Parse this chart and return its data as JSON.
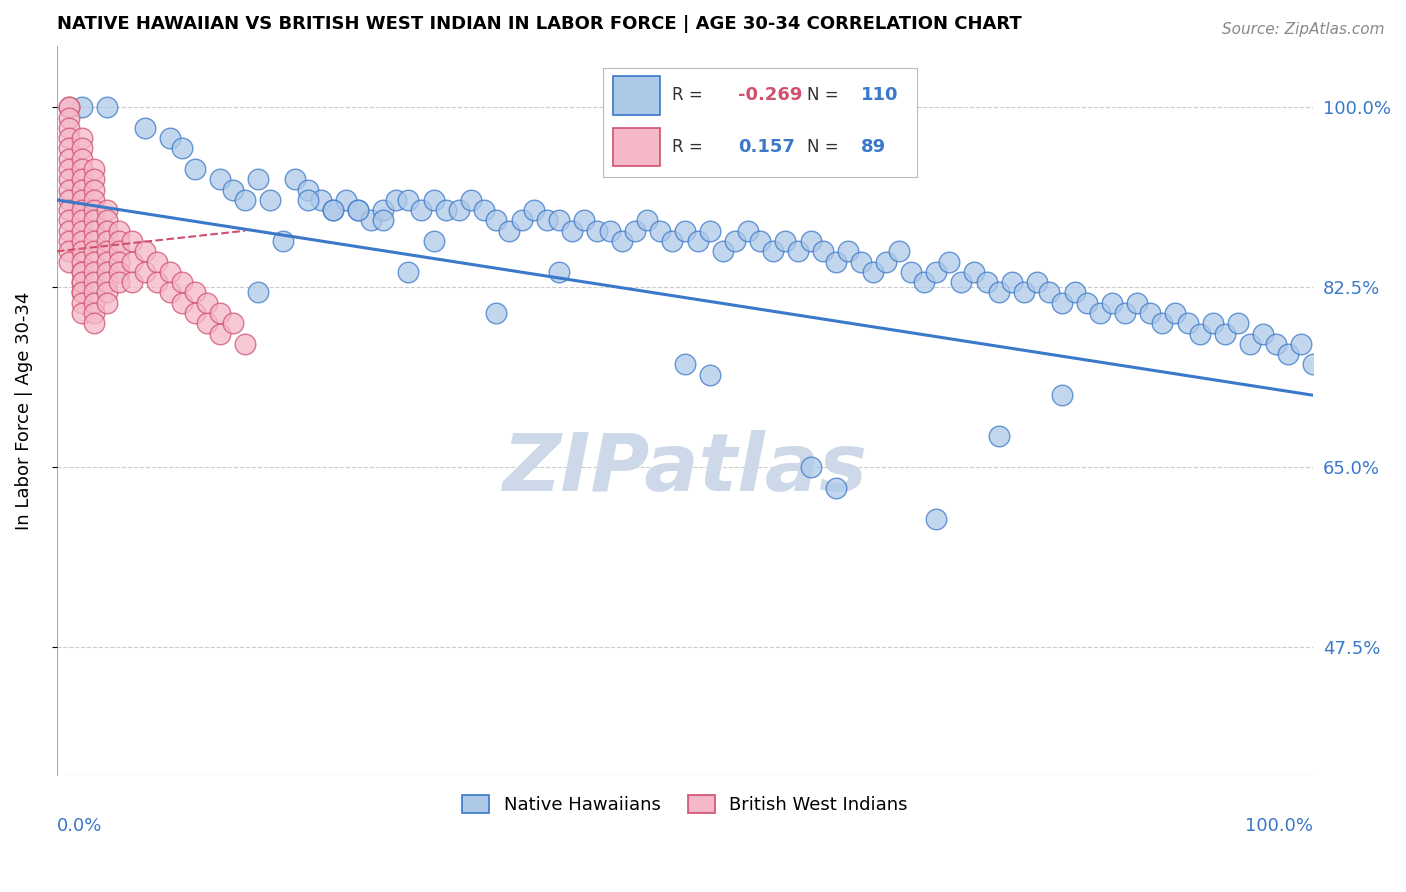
{
  "title": "NATIVE HAWAIIAN VS BRITISH WEST INDIAN IN LABOR FORCE | AGE 30-34 CORRELATION CHART",
  "source_text": "Source: ZipAtlas.com",
  "ylabel": "In Labor Force | Age 30-34",
  "y_tick_labels": [
    "47.5%",
    "65.0%",
    "82.5%",
    "100.0%"
  ],
  "y_tick_values": [
    0.475,
    0.65,
    0.825,
    1.0
  ],
  "x_range": [
    0.0,
    1.0
  ],
  "y_range": [
    0.35,
    1.06
  ],
  "legend_r_blue": "-0.269",
  "legend_n_blue": "110",
  "legend_r_pink": "0.157",
  "legend_n_pink": "89",
  "blue_color": "#aec9e8",
  "pink_color": "#f5b8c8",
  "trend_blue_color": "#3a78c9",
  "trend_pink_color": "#d05070",
  "watermark_color": "#cdd9e8",
  "background_color": "#ffffff",
  "blue_scatter_x": [
    0.02,
    0.04,
    0.07,
    0.09,
    0.1,
    0.11,
    0.13,
    0.14,
    0.15,
    0.16,
    0.17,
    0.19,
    0.2,
    0.21,
    0.22,
    0.23,
    0.24,
    0.25,
    0.26,
    0.27,
    0.28,
    0.29,
    0.3,
    0.31,
    0.32,
    0.33,
    0.34,
    0.35,
    0.36,
    0.37,
    0.38,
    0.39,
    0.4,
    0.41,
    0.42,
    0.43,
    0.44,
    0.45,
    0.46,
    0.47,
    0.48,
    0.49,
    0.5,
    0.51,
    0.52,
    0.53,
    0.54,
    0.55,
    0.56,
    0.57,
    0.58,
    0.59,
    0.6,
    0.61,
    0.62,
    0.63,
    0.64,
    0.65,
    0.66,
    0.67,
    0.68,
    0.69,
    0.7,
    0.71,
    0.72,
    0.73,
    0.74,
    0.75,
    0.76,
    0.77,
    0.78,
    0.79,
    0.8,
    0.81,
    0.82,
    0.83,
    0.84,
    0.85,
    0.86,
    0.87,
    0.88,
    0.89,
    0.9,
    0.91,
    0.92,
    0.93,
    0.94,
    0.95,
    0.96,
    0.97,
    0.98,
    0.99,
    1.0,
    0.5,
    0.52,
    0.6,
    0.62,
    0.7,
    0.75,
    0.8,
    0.16,
    0.18,
    0.2,
    0.22,
    0.24,
    0.26,
    0.28,
    0.3,
    0.35,
    0.4
  ],
  "blue_scatter_y": [
    1.0,
    1.0,
    0.98,
    0.97,
    0.96,
    0.94,
    0.93,
    0.92,
    0.91,
    0.93,
    0.91,
    0.93,
    0.92,
    0.91,
    0.9,
    0.91,
    0.9,
    0.89,
    0.9,
    0.91,
    0.91,
    0.9,
    0.91,
    0.9,
    0.9,
    0.91,
    0.9,
    0.89,
    0.88,
    0.89,
    0.9,
    0.89,
    0.89,
    0.88,
    0.89,
    0.88,
    0.88,
    0.87,
    0.88,
    0.89,
    0.88,
    0.87,
    0.88,
    0.87,
    0.88,
    0.86,
    0.87,
    0.88,
    0.87,
    0.86,
    0.87,
    0.86,
    0.87,
    0.86,
    0.85,
    0.86,
    0.85,
    0.84,
    0.85,
    0.86,
    0.84,
    0.83,
    0.84,
    0.85,
    0.83,
    0.84,
    0.83,
    0.82,
    0.83,
    0.82,
    0.83,
    0.82,
    0.81,
    0.82,
    0.81,
    0.8,
    0.81,
    0.8,
    0.81,
    0.8,
    0.79,
    0.8,
    0.79,
    0.78,
    0.79,
    0.78,
    0.79,
    0.77,
    0.78,
    0.77,
    0.76,
    0.77,
    0.75,
    0.75,
    0.74,
    0.65,
    0.63,
    0.6,
    0.68,
    0.72,
    0.82,
    0.87,
    0.91,
    0.9,
    0.9,
    0.89,
    0.84,
    0.87,
    0.8,
    0.84
  ],
  "pink_scatter_x": [
    0.01,
    0.01,
    0.01,
    0.01,
    0.01,
    0.01,
    0.01,
    0.01,
    0.01,
    0.01,
    0.01,
    0.01,
    0.01,
    0.01,
    0.01,
    0.01,
    0.01,
    0.02,
    0.02,
    0.02,
    0.02,
    0.02,
    0.02,
    0.02,
    0.02,
    0.02,
    0.02,
    0.02,
    0.02,
    0.02,
    0.02,
    0.02,
    0.02,
    0.02,
    0.02,
    0.02,
    0.02,
    0.02,
    0.03,
    0.03,
    0.03,
    0.03,
    0.03,
    0.03,
    0.03,
    0.03,
    0.03,
    0.03,
    0.03,
    0.03,
    0.03,
    0.03,
    0.03,
    0.03,
    0.04,
    0.04,
    0.04,
    0.04,
    0.04,
    0.04,
    0.04,
    0.04,
    0.04,
    0.04,
    0.05,
    0.05,
    0.05,
    0.05,
    0.05,
    0.05,
    0.06,
    0.06,
    0.06,
    0.07,
    0.07,
    0.08,
    0.08,
    0.09,
    0.09,
    0.1,
    0.1,
    0.11,
    0.11,
    0.12,
    0.12,
    0.13,
    0.13,
    0.14,
    0.15
  ],
  "pink_scatter_y": [
    1.0,
    1.0,
    0.99,
    0.98,
    0.97,
    0.96,
    0.95,
    0.94,
    0.93,
    0.92,
    0.91,
    0.9,
    0.89,
    0.88,
    0.87,
    0.86,
    0.85,
    0.97,
    0.96,
    0.95,
    0.94,
    0.93,
    0.92,
    0.91,
    0.9,
    0.89,
    0.88,
    0.87,
    0.86,
    0.85,
    0.84,
    0.83,
    0.82,
    0.84,
    0.83,
    0.82,
    0.81,
    0.8,
    0.94,
    0.93,
    0.92,
    0.91,
    0.9,
    0.89,
    0.88,
    0.87,
    0.86,
    0.85,
    0.84,
    0.83,
    0.82,
    0.81,
    0.8,
    0.79,
    0.9,
    0.89,
    0.88,
    0.87,
    0.86,
    0.85,
    0.84,
    0.83,
    0.82,
    0.81,
    0.88,
    0.87,
    0.86,
    0.85,
    0.84,
    0.83,
    0.87,
    0.85,
    0.83,
    0.86,
    0.84,
    0.85,
    0.83,
    0.84,
    0.82,
    0.83,
    0.81,
    0.82,
    0.8,
    0.81,
    0.79,
    0.8,
    0.78,
    0.79,
    0.77
  ],
  "blue_trend_x": [
    0.0,
    1.0
  ],
  "blue_trend_y": [
    0.91,
    0.72
  ],
  "pink_trend_x": [
    0.0,
    0.15
  ],
  "pink_trend_y": [
    0.86,
    0.88
  ]
}
